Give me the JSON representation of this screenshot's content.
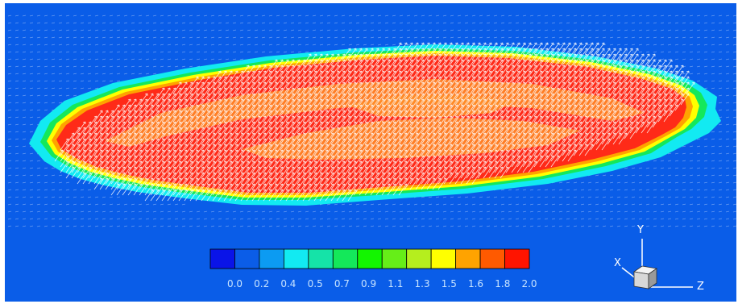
{
  "background_color": "#0a5de8",
  "colorbar": {
    "ticks": [
      "0.0",
      "0.2",
      "0.4",
      "0.5",
      "0.7",
      "0.9",
      "1.1",
      "1.3",
      "1.5",
      "1.6",
      "1.8",
      "2.0"
    ],
    "colors": [
      "#0a14e8",
      "#0b5de8",
      "#0c9bf2",
      "#12eaf2",
      "#15e3a8",
      "#14e85a",
      "#13f500",
      "#66ee18",
      "#b5ee1e",
      "#ffff00",
      "#ffa300",
      "#ff5a00",
      "#ff1400"
    ]
  },
  "axes_triad": {
    "y": "Y",
    "x": "X",
    "z": "Z"
  },
  "field_colors": {
    "outer_halo": "#12eaf2",
    "ring_green": "#14e85a",
    "ring_yellow": "#ffff00",
    "ring_orange": "#ffa300",
    "core_red": "#ff2a18",
    "inner_orange": "#ff8e2a",
    "vectors": "#ffffff"
  }
}
